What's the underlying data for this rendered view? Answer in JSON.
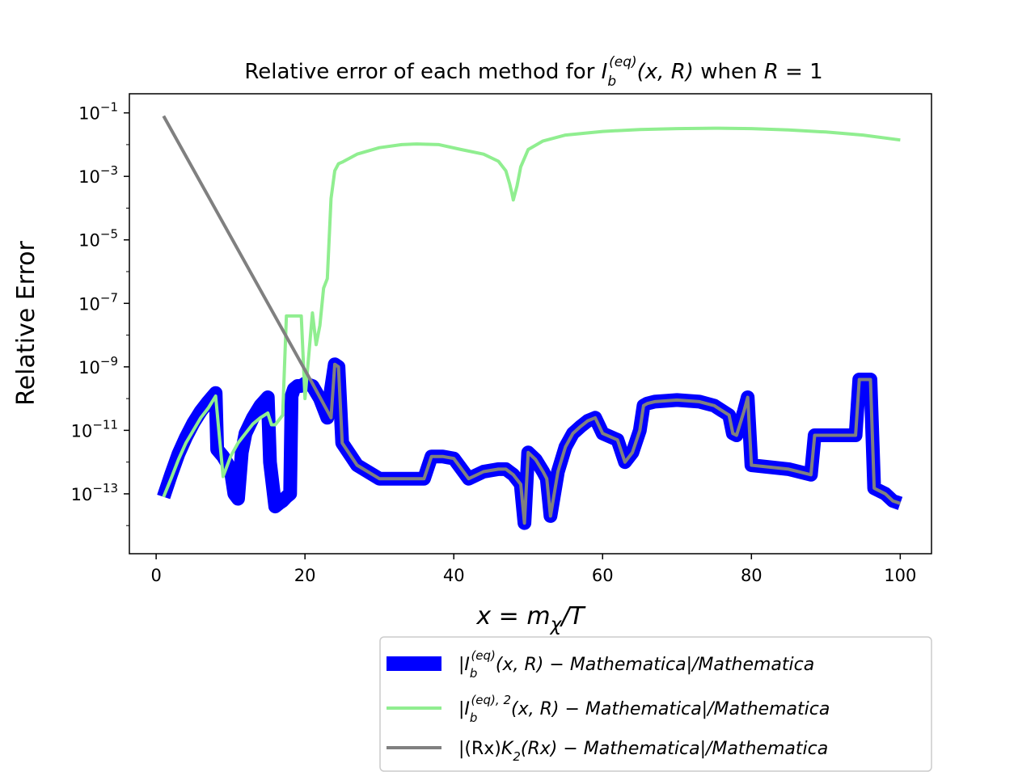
{
  "chart_data": {
    "type": "line",
    "title": "Relative error of each method for I_b^{(eq)}(x,R) when R = 1",
    "title_parts": {
      "prefix": "Relative error of each method for ",
      "func": "I",
      "func_sub": "b",
      "func_sup": "(eq)",
      "args": "(x, R)",
      "mid": " when ",
      "var": "R",
      "eq": " = 1"
    },
    "xlabel": "x = m_χ/T",
    "xlabel_parts": {
      "x": "x",
      "eq": " = ",
      "m": "m",
      "sub": "χ",
      "rest": "/T"
    },
    "ylabel": "Relative Error",
    "x_ticks": [
      0,
      20,
      40,
      60,
      80,
      100
    ],
    "y_ticks": [
      {
        "base": "10",
        "exp": "−1",
        "value": 0.1
      },
      {
        "base": "10",
        "exp": "−3",
        "value": 0.001
      },
      {
        "base": "10",
        "exp": "−5",
        "value": 1e-05
      },
      {
        "base": "10",
        "exp": "−7",
        "value": 1e-07
      },
      {
        "base": "10",
        "exp": "−9",
        "value": 1e-09
      },
      {
        "base": "10",
        "exp": "−11",
        "value": 1e-11
      },
      {
        "base": "10",
        "exp": "−13",
        "value": 1e-13
      }
    ],
    "xlim": [
      -3.6,
      104.2
    ],
    "ylim": [
      1.3e-15,
      0.4
    ],
    "y_scale": "log",
    "grid": false,
    "legend_position": "bottom-right, outside plot",
    "series": [
      {
        "name": "|I_b^{(eq)}(x,R) − Mathematica|/Mathematica",
        "legend": {
          "lead": "|",
          "func": "I",
          "sub": "b",
          "sup": "(eq)",
          "args": "(x, R) − ",
          "rest": "Mathematica|/Mathematica"
        },
        "color": "#0000ff",
        "width": "thick",
        "x": [
          1,
          2,
          3,
          4,
          5,
          6,
          7,
          8,
          8.2,
          9,
          10,
          10.5,
          11,
          11.5,
          12,
          13,
          14,
          15,
          15.3,
          16,
          16.5,
          17,
          17.5,
          18,
          18.2,
          18.5,
          19,
          19.5,
          20,
          21,
          22,
          23,
          23.5,
          24,
          24.5,
          25,
          27,
          30,
          33,
          35,
          36,
          37,
          38,
          38.5,
          40,
          42,
          44,
          46,
          47,
          48,
          49,
          49.5,
          50,
          51,
          52,
          52.5,
          53,
          54,
          55,
          56,
          57,
          58,
          59,
          60,
          62,
          63,
          64,
          65,
          65.5,
          66,
          67,
          70,
          73,
          75,
          77,
          77.5,
          78,
          79,
          79.5,
          80,
          85,
          88,
          88.5,
          90,
          94,
          94.5,
          95,
          96,
          96.5,
          98,
          99,
          100
        ],
        "values": [
          8e-14,
          4e-13,
          1.8e-12,
          6e-12,
          1.7e-11,
          4e-11,
          8e-11,
          1.5e-10,
          2.5e-12,
          1.5e-12,
          6e-13,
          1e-13,
          7e-14,
          2e-12,
          8e-12,
          2.5e-11,
          6e-11,
          1.1e-10,
          1e-12,
          4e-14,
          5e-14,
          6e-14,
          8e-14,
          1e-13,
          1.2e-10,
          2e-10,
          2.5e-10,
          2.5e-10,
          3e-10,
          2.5e-10,
          1e-10,
          2.5e-11,
          2e-10,
          1.2e-09,
          1e-09,
          4e-12,
          8e-13,
          3e-13,
          3e-13,
          3e-13,
          3e-13,
          1.5e-12,
          1.5e-12,
          1.5e-12,
          1.3e-12,
          3e-13,
          5e-13,
          6e-13,
          6e-13,
          4e-13,
          2e-13,
          1.2e-14,
          2e-12,
          1.2e-12,
          5e-13,
          3e-13,
          2e-14,
          5e-13,
          3e-12,
          8e-12,
          1.3e-11,
          2e-11,
          2.5e-11,
          8e-12,
          5e-12,
          1e-12,
          2e-12,
          1e-11,
          6e-11,
          7e-11,
          8e-11,
          9e-11,
          8e-11,
          6e-11,
          3e-11,
          8e-12,
          7e-12,
          4e-11,
          1.1e-10,
          8e-13,
          6e-13,
          4e-13,
          7e-12,
          7e-12,
          7e-12,
          4e-10,
          4e-10,
          4e-10,
          1.5e-13,
          1e-13,
          6e-14,
          5e-14
        ]
      },
      {
        "name": "|I_b^{(eq),2}(x,R) − Mathematica|/Mathematica",
        "legend": {
          "lead": "|",
          "func": "I",
          "sub": "b",
          "sup": "(eq), 2",
          "args": "(x, R) − ",
          "rest": "Mathematica|/Mathematica"
        },
        "color": "#90ee90",
        "width": "medium",
        "x": [
          1,
          2,
          3,
          4,
          5,
          6,
          7,
          8,
          9,
          10,
          11,
          12,
          13,
          14,
          15,
          15.5,
          16,
          17,
          17.5,
          18,
          19,
          19.5,
          20,
          21,
          21.5,
          22,
          22.5,
          23,
          23.5,
          24,
          24.5,
          25,
          27,
          30,
          33,
          35,
          38,
          41,
          44,
          46,
          47,
          47.5,
          47.8,
          48,
          48.5,
          49,
          50,
          52,
          55,
          60,
          65,
          70,
          75,
          80,
          85,
          90,
          95,
          100
        ],
        "values": [
          8e-14,
          3e-13,
          1.2e-12,
          4e-12,
          1e-11,
          2.5e-11,
          5e-11,
          1.2e-10,
          3.5e-13,
          1.5e-12,
          4e-12,
          8e-12,
          1.6e-11,
          2.5e-11,
          3.5e-11,
          1.5e-11,
          1.5e-11,
          3e-11,
          4e-08,
          4e-08,
          4e-08,
          4e-08,
          1e-10,
          5e-08,
          5e-09,
          2e-08,
          3e-07,
          6e-07,
          0.0002,
          0.0015,
          0.0025,
          0.0028,
          0.005,
          0.008,
          0.01,
          0.0105,
          0.01,
          0.007,
          0.005,
          0.003,
          0.0015,
          0.0006,
          0.0003,
          0.00018,
          0.0005,
          0.002,
          0.007,
          0.013,
          0.02,
          0.026,
          0.03,
          0.032,
          0.033,
          0.032,
          0.029,
          0.025,
          0.02,
          0.014
        ]
      },
      {
        "name": "|(Rx)K_2(Rx) − Mathematica|/Mathematica",
        "legend": {
          "lead": "|(Rx)",
          "func": "K",
          "sub": "2",
          "sup": "",
          "args": "(Rx) − ",
          "rest": "Mathematica|/Mathematica"
        },
        "color": "#808080",
        "width": "medium",
        "x": [
          1,
          21,
          23.5,
          24,
          24.5,
          25,
          27,
          30,
          33,
          35,
          36,
          37,
          38,
          38.5,
          40,
          42,
          44,
          46,
          47,
          48,
          49,
          49.5,
          50,
          51,
          52,
          52.5,
          53,
          54,
          55,
          56,
          57,
          58,
          59,
          60,
          62,
          63,
          64,
          65,
          65.5,
          66,
          67,
          70,
          73,
          75,
          77,
          77.5,
          78,
          79,
          79.5,
          80,
          85,
          88,
          88.5,
          90,
          94,
          94.5,
          95,
          96,
          96.5,
          98,
          99,
          100
        ],
        "values": [
          0.08,
          3e-10,
          2.5e-11,
          1.2e-09,
          1e-09,
          4e-12,
          8e-13,
          3e-13,
          3e-13,
          3e-13,
          3e-13,
          1.5e-12,
          1.5e-12,
          1.5e-12,
          1.3e-12,
          3e-13,
          5e-13,
          6e-13,
          6e-13,
          4e-13,
          2e-13,
          1.2e-14,
          2e-12,
          1.2e-12,
          5e-13,
          3e-13,
          2e-14,
          5e-13,
          3e-12,
          8e-12,
          1.3e-11,
          2e-11,
          2.5e-11,
          8e-12,
          5e-12,
          1e-12,
          2e-12,
          1e-11,
          6e-11,
          7e-11,
          8e-11,
          9e-11,
          8e-11,
          6e-11,
          3e-11,
          8e-12,
          7e-12,
          4e-11,
          1.1e-10,
          8e-13,
          6e-13,
          4e-13,
          7e-12,
          7e-12,
          7e-12,
          4e-10,
          4e-10,
          4e-10,
          1.5e-13,
          1e-13,
          6e-14,
          5e-14
        ]
      }
    ]
  }
}
